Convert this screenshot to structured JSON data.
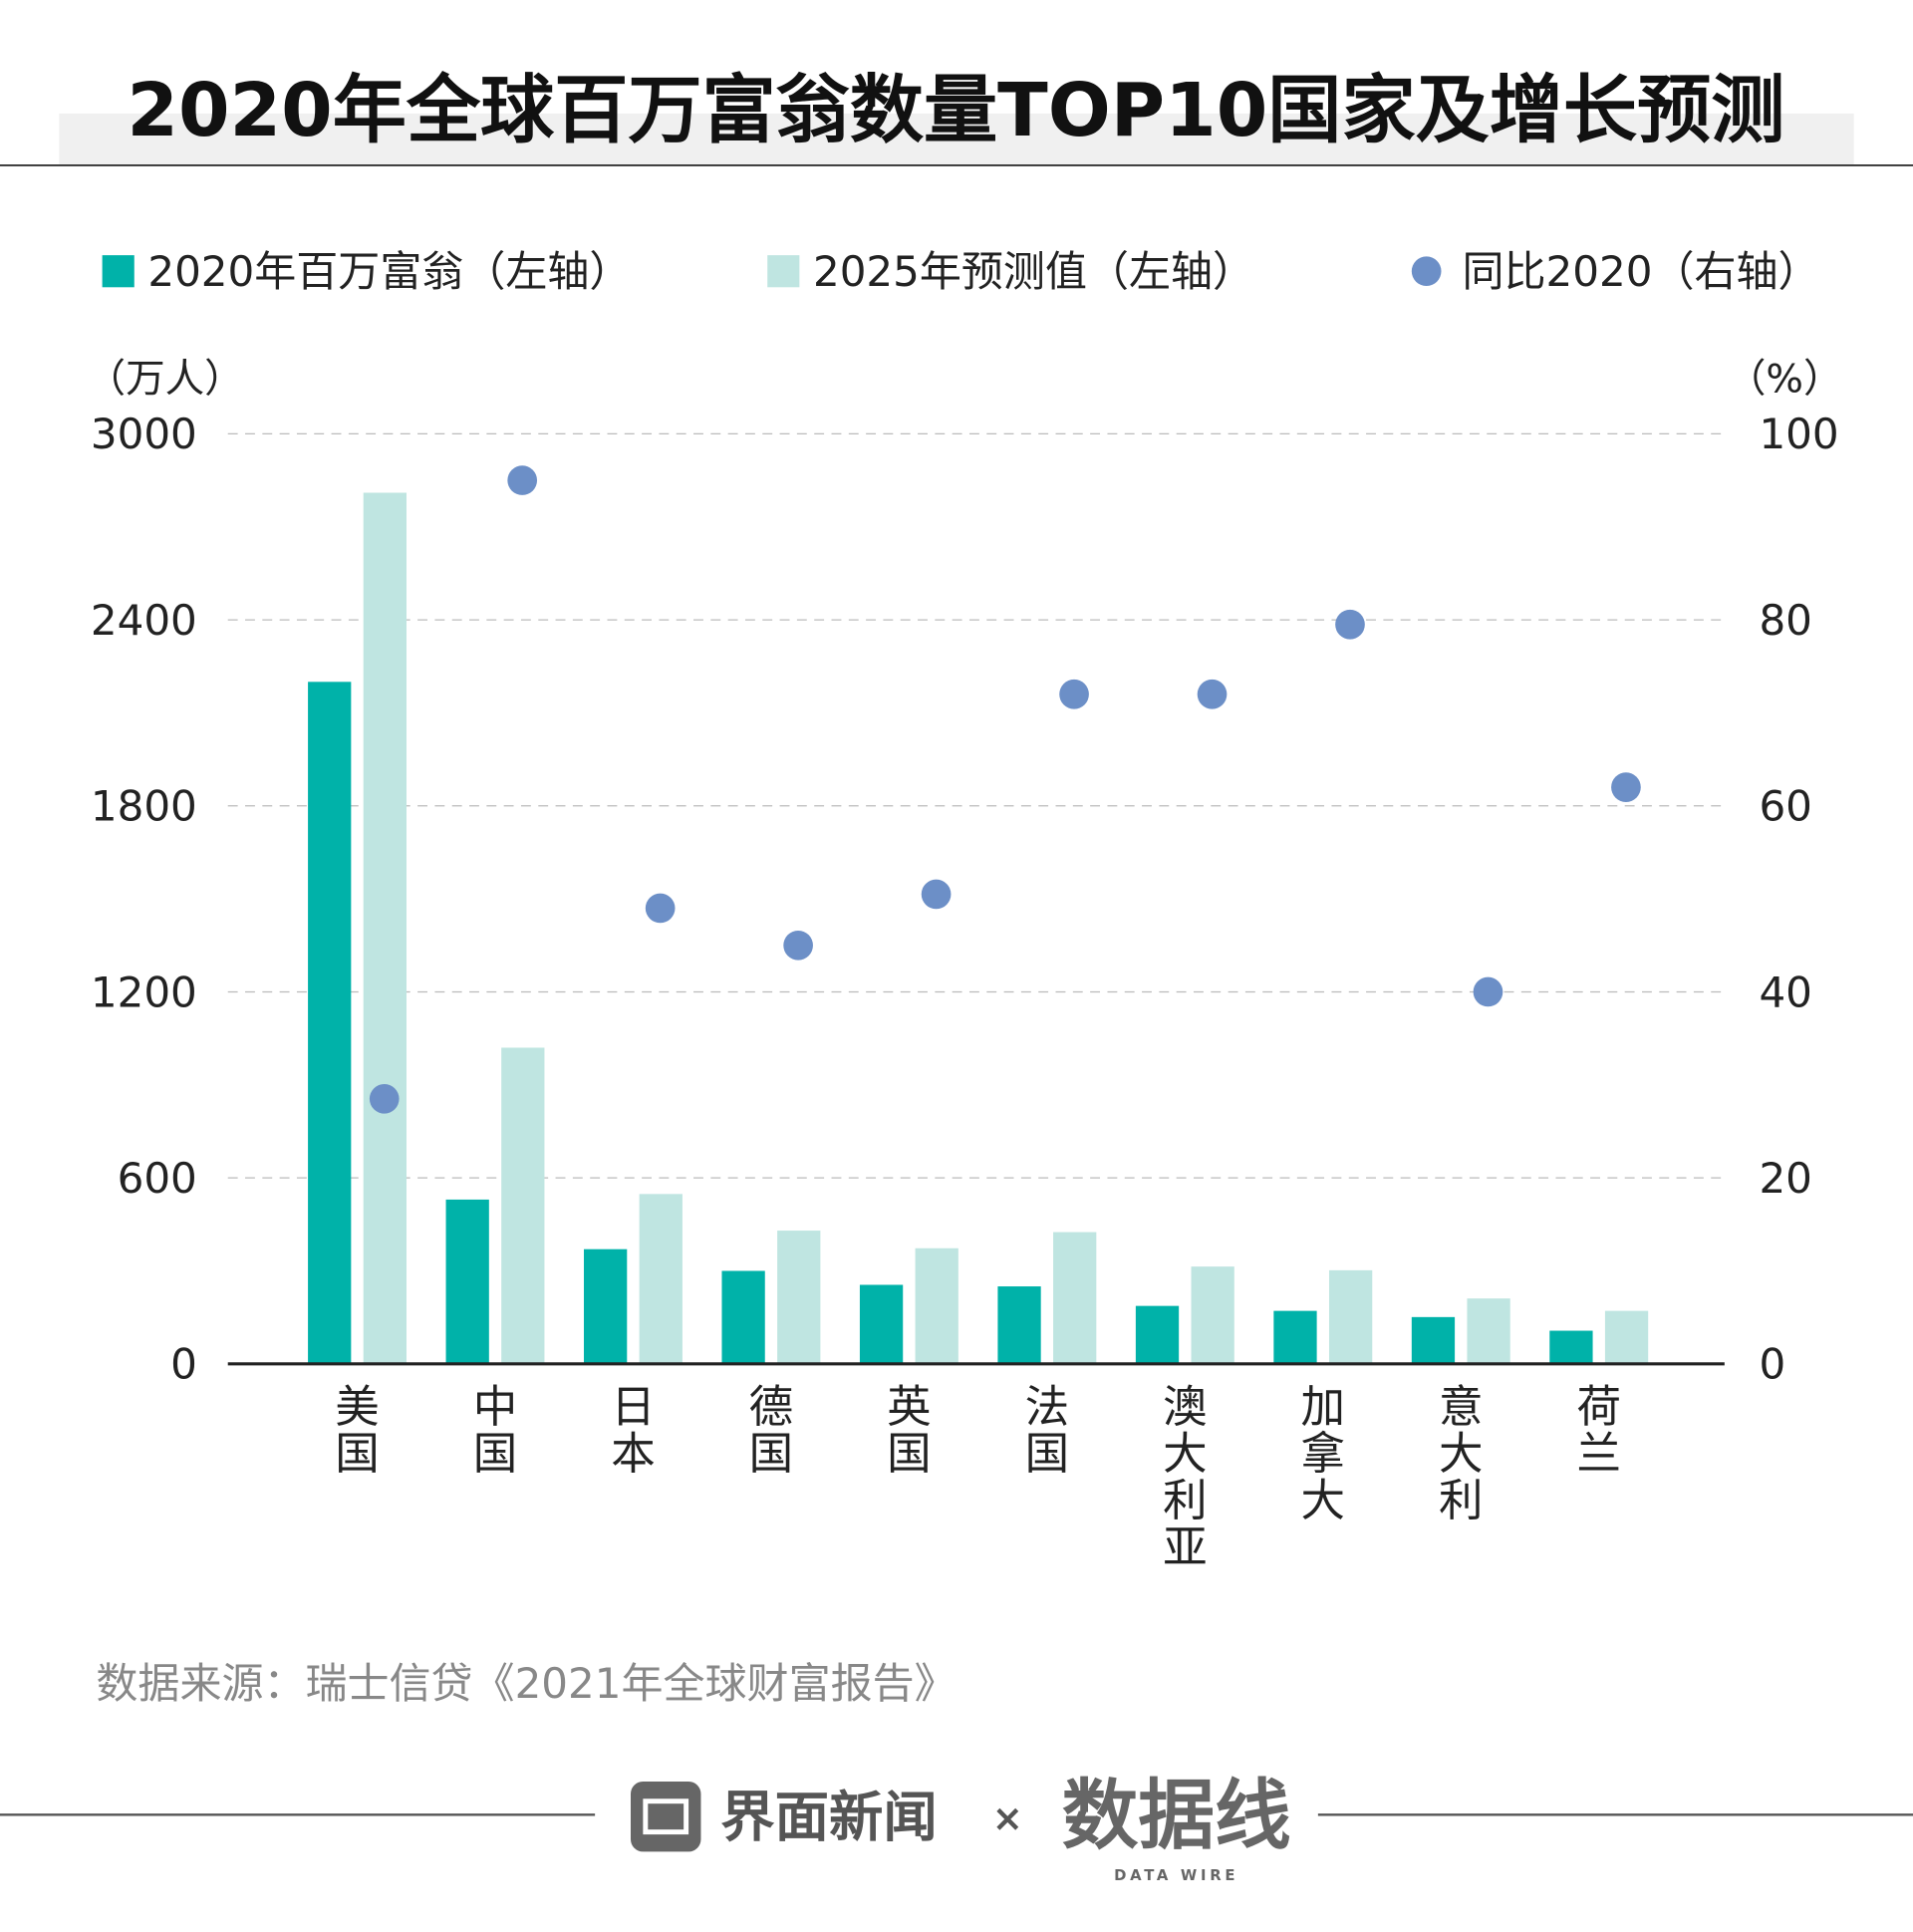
{
  "chart_data": {
    "type": "bar",
    "title": "2020年全球百万富翁数量TOP10国家及增长预测",
    "left_unit": "（万人）",
    "right_unit": "（%）",
    "categories": [
      "美国",
      "中国",
      "日本",
      "德国",
      "英国",
      "法国",
      "澳大利亚",
      "加拿大",
      "意大利",
      "荷兰"
    ],
    "left_ylim": [
      0,
      3000
    ],
    "left_ticks": [
      "0",
      "600",
      "1200",
      "1800",
      "2400",
      "3000"
    ],
    "right_ylim": [
      0,
      100
    ],
    "right_ticks": [
      "0",
      "20",
      "40",
      "60",
      "80",
      "100"
    ],
    "grid": true,
    "legend_position": "top",
    "series": [
      {
        "name": "2020年百万富翁（左轴）",
        "type": "bar",
        "axis": "left",
        "color": "#00b2a9",
        "values": [
          2200,
          530,
          370,
          300,
          255,
          250,
          187,
          171,
          151,
          107
        ]
      },
      {
        "name": "2025年预测值（左轴）",
        "type": "bar",
        "axis": "left",
        "color": "#bfe5e1",
        "values": [
          2810,
          1020,
          548,
          430,
          373,
          425,
          314,
          302,
          211,
          171
        ]
      },
      {
        "name": "同比2020（右轴）",
        "type": "scatter",
        "axis": "right",
        "color": "#6c8fc7",
        "values": [
          28.5,
          95,
          49,
          45,
          50.5,
          72,
          72,
          79.5,
          40,
          62
        ]
      }
    ]
  },
  "source": "数据来源：瑞士信贷《2021年全球财富报告》",
  "footer": {
    "brand1": "界面新闻",
    "times": "×",
    "brand2": "数据线",
    "brand2_sub": "DATA WIRE"
  }
}
